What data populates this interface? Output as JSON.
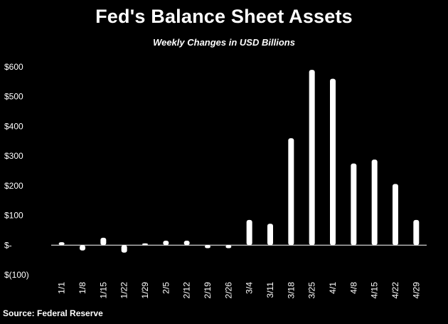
{
  "chart_data": {
    "type": "bar",
    "title": "Fed's Balance Sheet Assets",
    "subtitle": "Weekly Changes in USD Billions",
    "source": "Source: Federal Reserve",
    "categories": [
      "1/1",
      "1/8",
      "1/15",
      "1/22",
      "1/29",
      "2/5",
      "2/12",
      "2/19",
      "2/26",
      "3/4",
      "3/11",
      "3/18",
      "3/25",
      "4/1",
      "4/8",
      "4/15",
      "4/22",
      "4/29"
    ],
    "values": [
      10,
      -18,
      25,
      -25,
      6,
      15,
      15,
      -10,
      -10,
      85,
      72,
      360,
      590,
      560,
      275,
      288,
      206,
      85
    ],
    "ylim": [
      -100,
      600
    ],
    "yticks": [
      -100,
      0,
      100,
      200,
      300,
      400,
      500,
      600
    ],
    "ytick_labels": [
      "$(100)",
      "$-",
      "$100",
      "$200",
      "$300",
      "$400",
      "$500",
      "$600"
    ],
    "grid": false,
    "bar_color": "#ffffff",
    "axis_color": "#ffffff",
    "background": "#000000"
  }
}
